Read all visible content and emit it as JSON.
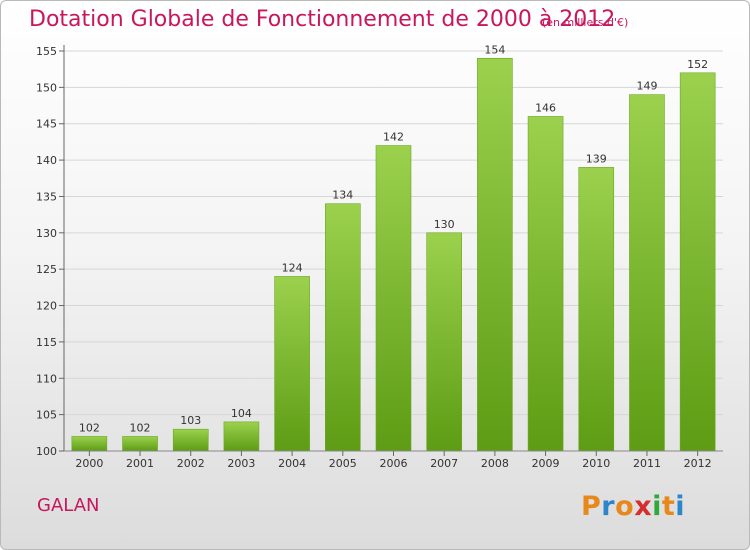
{
  "header": {
    "title": "Dotation Globale de Fonctionnement de 2000 à 2012",
    "unit": "(en milliers d'€)"
  },
  "footer": {
    "commune": "GALAN",
    "logo_text": "Proxiti",
    "logo_colors": [
      "#e8881a",
      "#2d86c9",
      "#e8881a",
      "#d42e2e",
      "#2fa83c",
      "#e8881a",
      "#2d86c9"
    ]
  },
  "chart_data": {
    "type": "bar",
    "title": "Dotation Globale de Fonctionnement de 2000 à 2012",
    "xlabel": "",
    "ylabel": "",
    "categories": [
      "2000",
      "2001",
      "2002",
      "2003",
      "2004",
      "2005",
      "2006",
      "2007",
      "2008",
      "2009",
      "2010",
      "2011",
      "2012"
    ],
    "values": [
      102,
      102,
      103,
      104,
      124,
      134,
      142,
      130,
      154,
      146,
      139,
      149,
      152
    ],
    "ylim": [
      100,
      155
    ],
    "yticks": [
      100,
      105,
      110,
      115,
      120,
      125,
      130,
      135,
      140,
      145,
      150,
      155
    ],
    "grid": true,
    "bar_color_top": "#9bd14d",
    "bar_color_bottom": "#5d9c14"
  }
}
